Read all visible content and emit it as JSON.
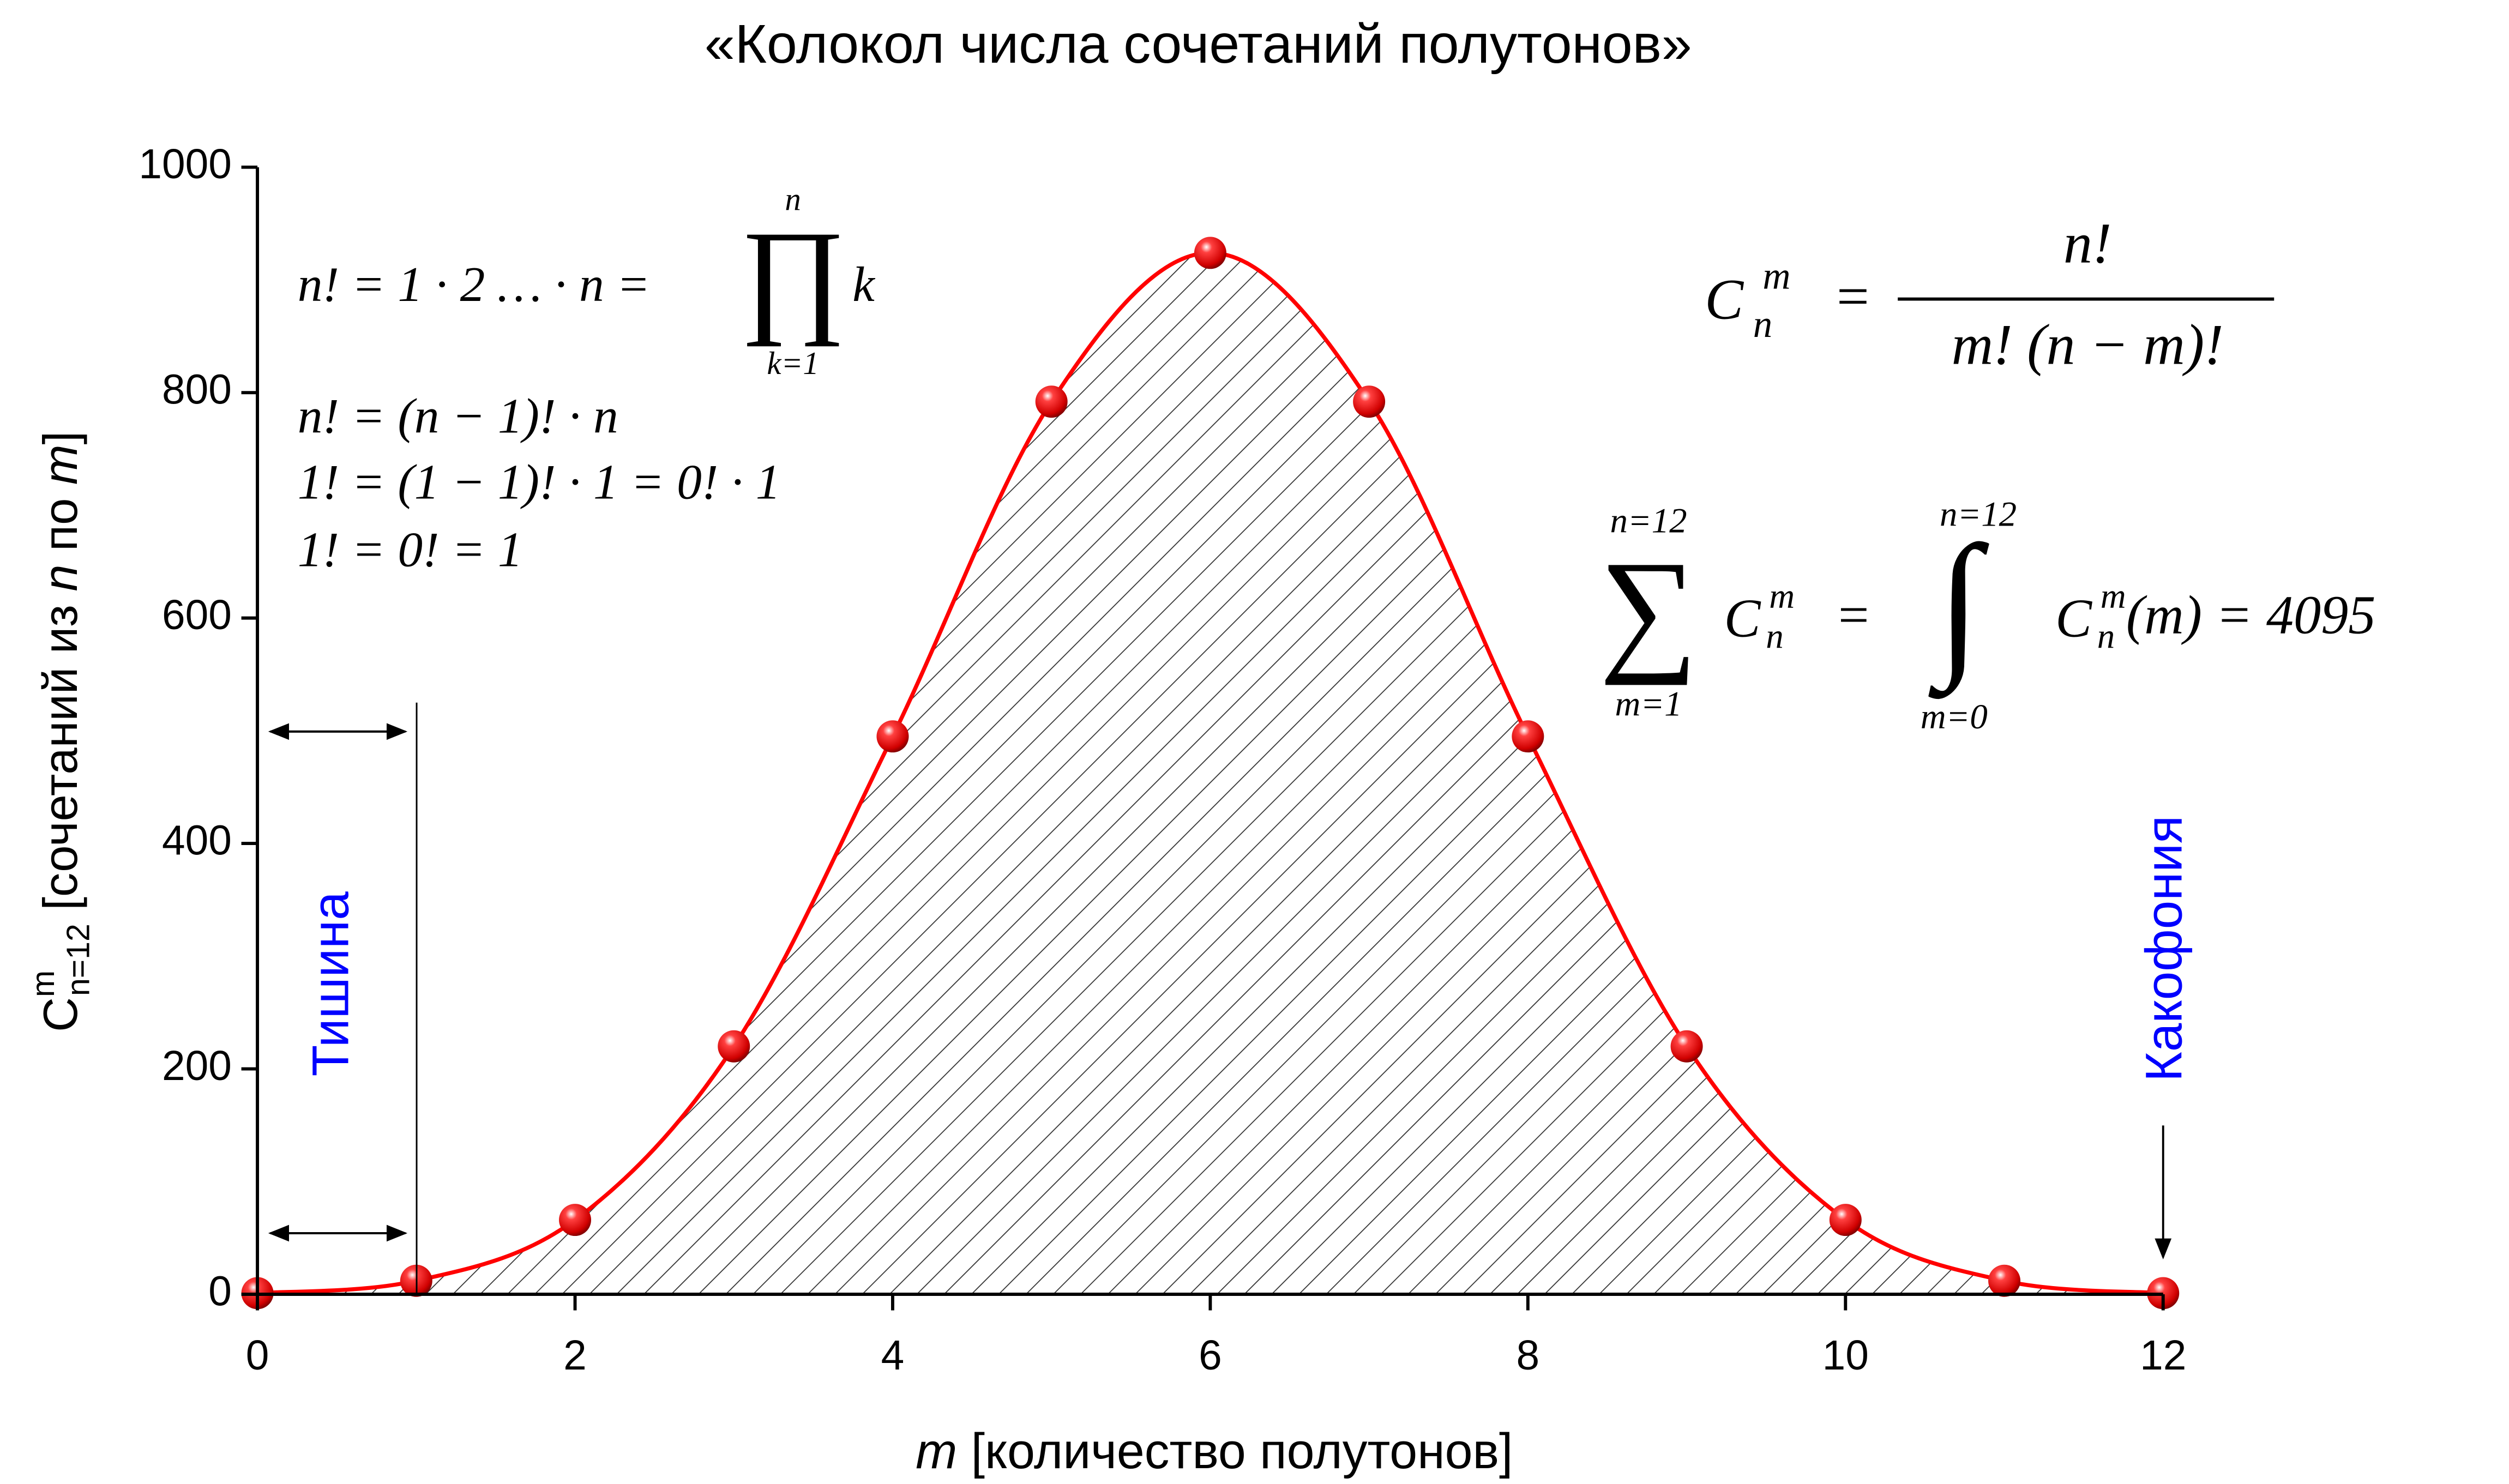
{
  "chart_data": {
    "type": "line",
    "title": "«Колокол числа сочетаний полутонов»",
    "x": [
      0,
      1,
      2,
      3,
      4,
      5,
      6,
      7,
      8,
      9,
      10,
      11,
      12
    ],
    "series": [
      {
        "color": "#ff0000",
        "values": [
          1,
          12,
          66,
          220,
          495,
          792,
          924,
          792,
          495,
          220,
          66,
          12,
          1
        ]
      }
    ],
    "xlim": [
      0,
      12
    ],
    "xticks": [
      0,
      2,
      4,
      6,
      8,
      10,
      12
    ],
    "ylim": [
      0,
      1000
    ],
    "yticks": [
      0,
      200,
      400,
      600,
      800,
      1000
    ],
    "x_label": {
      "var": "m",
      "text": " [количество полутонов]"
    },
    "y_label": {
      "symbol": "C",
      "sup": "m",
      "sub": "n=12",
      "text": " [сочетаний из ",
      "n": "n",
      "mid": " по ",
      "m": "m",
      "end": "]"
    },
    "annotations": {
      "silence": "Тишина",
      "cacophony": "Какофония"
    },
    "formulas": {
      "factorial": {
        "lhs": "n! = 1 · 2 … · n =",
        "prod": "∏",
        "upper": "n",
        "lower": "k=1",
        "k": "k"
      },
      "recursion": [
        "n! = (n − 1)! · n",
        "1! = (1 − 1)! · 1 = 0! · 1",
        "1! = 0! = 1"
      ],
      "combination": {
        "C": "C",
        "sup": "m",
        "sub": "n",
        "eq": "=",
        "num": "n!",
        "den": "m! (n − m)!"
      },
      "sum": {
        "sigma": "∑",
        "sum_upper": "n=12",
        "sum_lower": "m=1",
        "C": "C",
        "sup": "m",
        "sub": "n",
        "eq": "=",
        "integral": "∫",
        "int_upper": "n=12",
        "int_lower": "m=0",
        "C2": "C",
        "sup2": "m",
        "sub2": "n",
        "rest": "(m) = 4095"
      }
    }
  }
}
